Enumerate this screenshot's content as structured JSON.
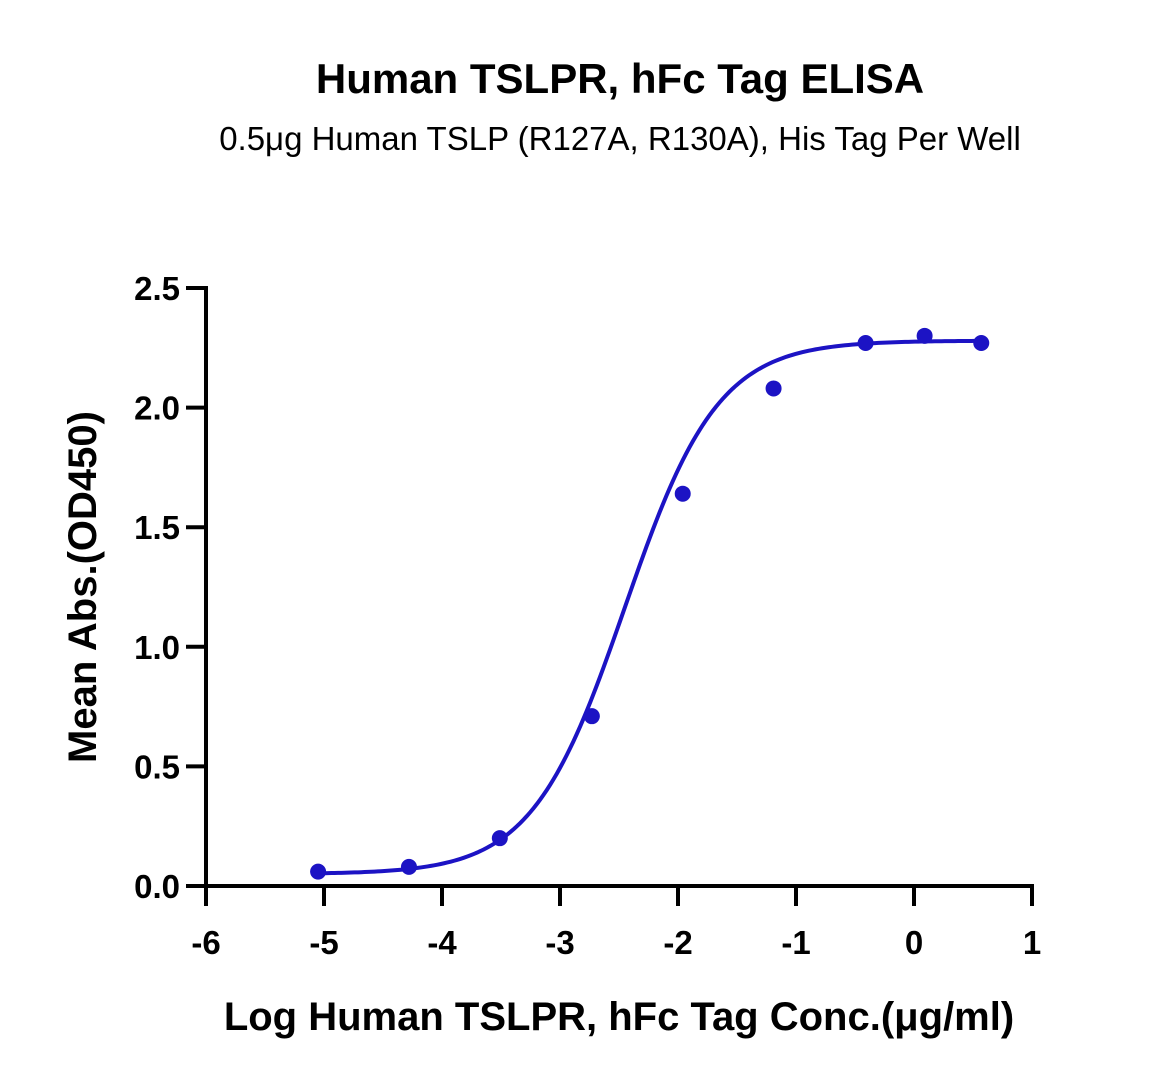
{
  "chart_data": {
    "type": "scatter",
    "title": "Human TSLPR, hFc Tag ELISA",
    "subtitle": "0.5μg Human TSLP (R127A, R130A), His Tag Per Well",
    "xlabel": "Log Human TSLPR, hFc Tag Conc.(μg/ml)",
    "ylabel": "Mean Abs.(OD450)",
    "xlim": [
      -6,
      1
    ],
    "ylim": [
      0,
      2.5
    ],
    "x_ticks": [
      -6,
      -5,
      -4,
      -3,
      -2,
      -1,
      0,
      1
    ],
    "y_ticks": [
      0.0,
      0.5,
      1.0,
      1.5,
      2.0,
      2.5
    ],
    "x_tick_labels": [
      "-6",
      "-5",
      "-4",
      "-3",
      "-2",
      "-1",
      "0",
      "1"
    ],
    "y_tick_labels": [
      "0.0",
      "0.5",
      "1.0",
      "1.5",
      "2.0",
      "2.5"
    ],
    "grid": false,
    "color": "#1c13c4",
    "series": [
      {
        "x": [
          -5.05,
          -4.28,
          -3.51,
          -2.73,
          -1.96,
          -1.19,
          -0.41,
          0.09,
          0.57
        ],
        "y": [
          0.06,
          0.08,
          0.2,
          0.71,
          1.64,
          2.08,
          2.27,
          2.3,
          2.27
        ]
      }
    ],
    "fit": {
      "model": "4PL",
      "bottom": 0.05,
      "top": 2.28,
      "log_ec50": -2.45,
      "hill_slope": 1.1
    }
  }
}
